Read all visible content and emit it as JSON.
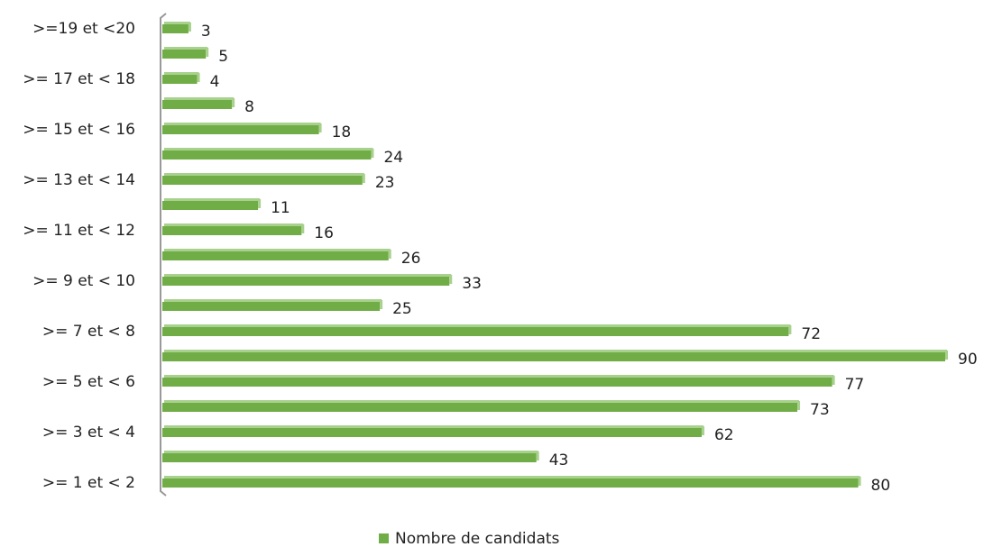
{
  "chart_data": {
    "type": "bar",
    "orientation": "horizontal",
    "categories": [
      ">= 1 et < 2",
      null,
      ">= 3 et < 4",
      null,
      ">= 5 et < 6",
      null,
      ">= 7 et < 8",
      null,
      ">= 9 et < 10",
      null,
      ">= 11 et < 12",
      null,
      ">= 13 et < 14",
      null,
      ">= 15 et < 16",
      null,
      ">= 17 et < 18",
      null,
      ">=19 et <20"
    ],
    "series": [
      {
        "name": "Nombre de candidats",
        "color": "#70ad47",
        "values": [
          80,
          43,
          62,
          73,
          77,
          90,
          72,
          25,
          33,
          26,
          16,
          11,
          23,
          24,
          18,
          8,
          4,
          5,
          3
        ]
      }
    ],
    "legend": "bottom"
  }
}
